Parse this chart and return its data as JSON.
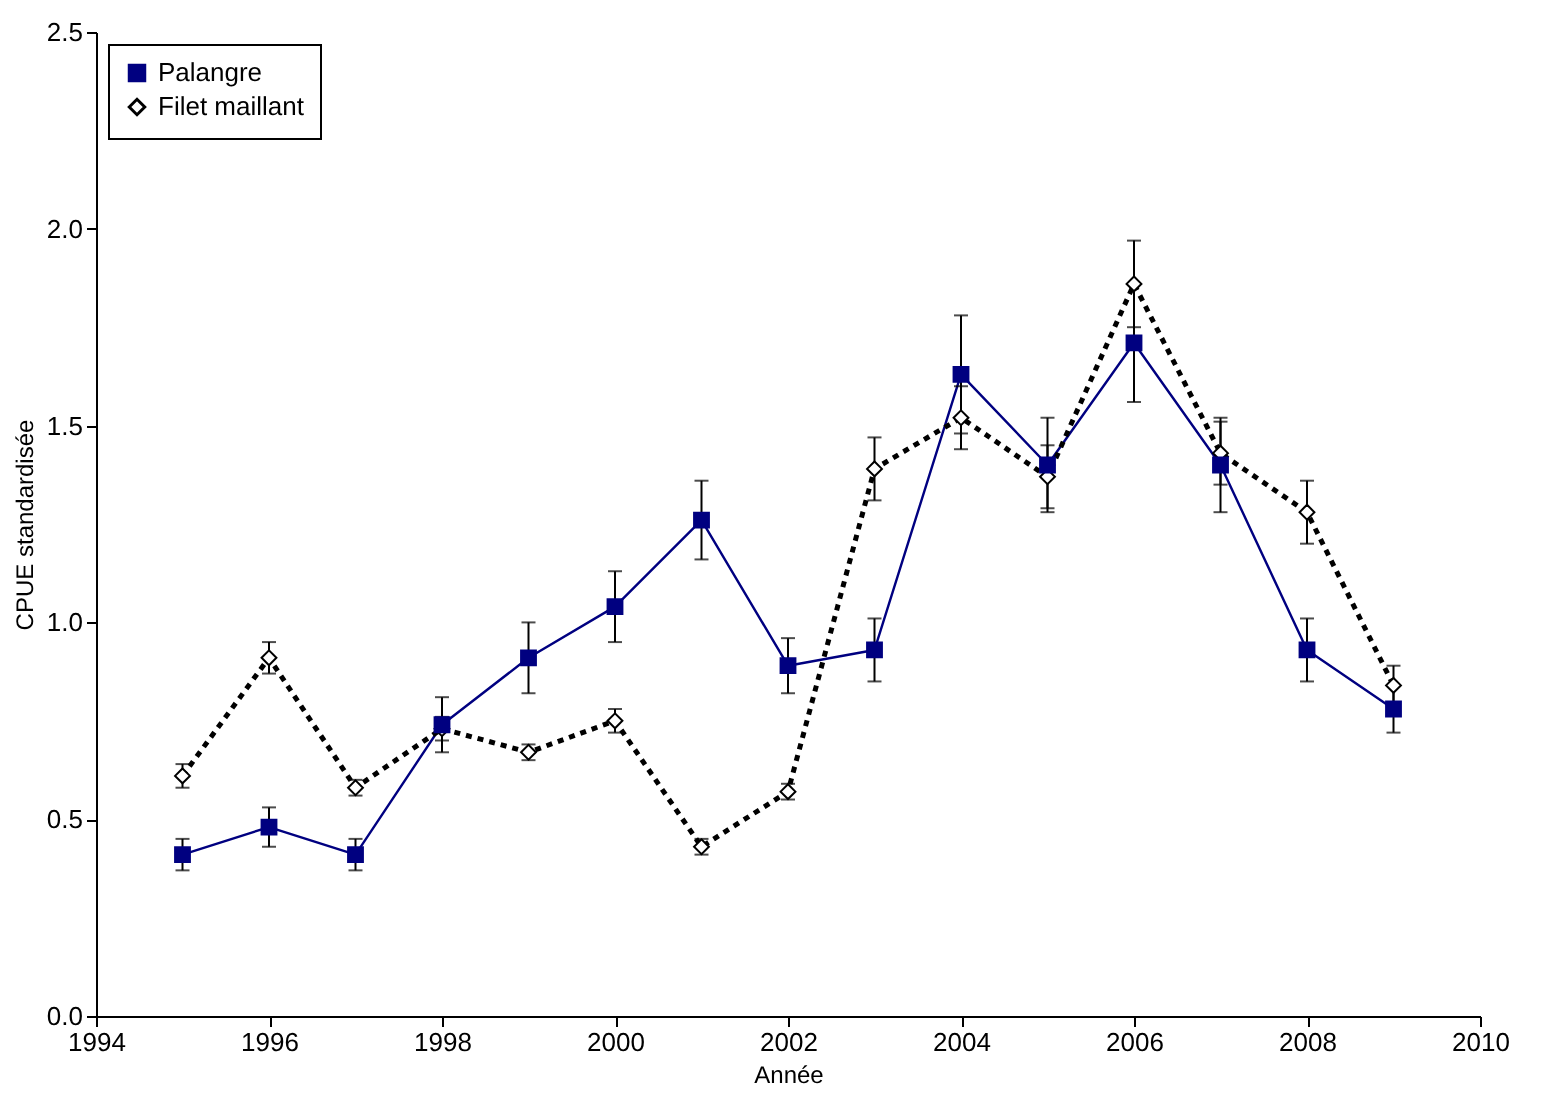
{
  "chart_data": {
    "type": "line",
    "xlabel": "Année",
    "ylabel": "CPUE standardisée",
    "x": [
      1995,
      1996,
      1997,
      1998,
      1999,
      2000,
      2001,
      2002,
      2003,
      2004,
      2005,
      2006,
      2007,
      2008,
      2009
    ],
    "series": [
      {
        "name": "Palangre",
        "color": "#000080",
        "marker": "square",
        "line_style": "solid",
        "values": [
          0.41,
          0.48,
          0.41,
          0.74,
          0.91,
          1.04,
          1.26,
          0.89,
          0.93,
          1.63,
          1.4,
          1.71,
          1.4,
          0.93,
          0.78
        ],
        "errors": [
          0.04,
          0.05,
          0.04,
          0.07,
          0.09,
          0.09,
          0.1,
          0.07,
          0.08,
          0.15,
          0.12,
          0.15,
          0.12,
          0.08,
          0.06
        ]
      },
      {
        "name": "Filet maillant",
        "color": "#000000",
        "marker": "diamond",
        "line_style": "dotted",
        "values": [
          0.61,
          0.91,
          0.58,
          0.73,
          0.67,
          0.75,
          0.43,
          0.57,
          1.39,
          1.52,
          1.37,
          1.86,
          1.43,
          1.28,
          0.84
        ],
        "errors": [
          0.03,
          0.04,
          0.02,
          0.03,
          0.02,
          0.03,
          0.02,
          0.02,
          0.08,
          0.08,
          0.08,
          0.11,
          0.08,
          0.08,
          0.05
        ]
      }
    ],
    "xlim": [
      1994,
      2010
    ],
    "xticks": [
      1994,
      1996,
      1998,
      2000,
      2002,
      2004,
      2006,
      2008,
      2010
    ],
    "ylim": [
      0,
      2.5
    ],
    "yticks": [
      {
        "value": 0,
        "label": "0.0"
      },
      {
        "value": 0.5,
        "label": "0.5"
      },
      {
        "value": 1,
        "label": "1.0"
      },
      {
        "value": 1.5,
        "label": "1.5"
      },
      {
        "value": 2,
        "label": "2.0"
      },
      {
        "value": 2.5,
        "label": "2.5"
      }
    ],
    "grid": false,
    "legend": "top left"
  }
}
